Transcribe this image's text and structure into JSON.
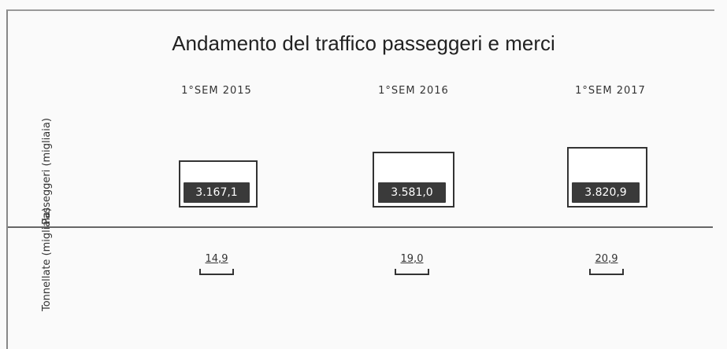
{
  "header": {
    "title": "Andamento del traffico passeggeri e merci"
  },
  "table": {
    "columns": [
      "1°SEM 2015",
      "1°SEM 2016",
      "1°SEM 2017"
    ],
    "rows": [
      {
        "label": "Passeggeri (migliaia)",
        "values": [
          "3.167,1",
          "3.581,0",
          "3.820,9"
        ]
      },
      {
        "label": "Tonnellate (migliaia)",
        "values": [
          "14,9",
          "19,0",
          "20,9"
        ]
      }
    ]
  }
}
